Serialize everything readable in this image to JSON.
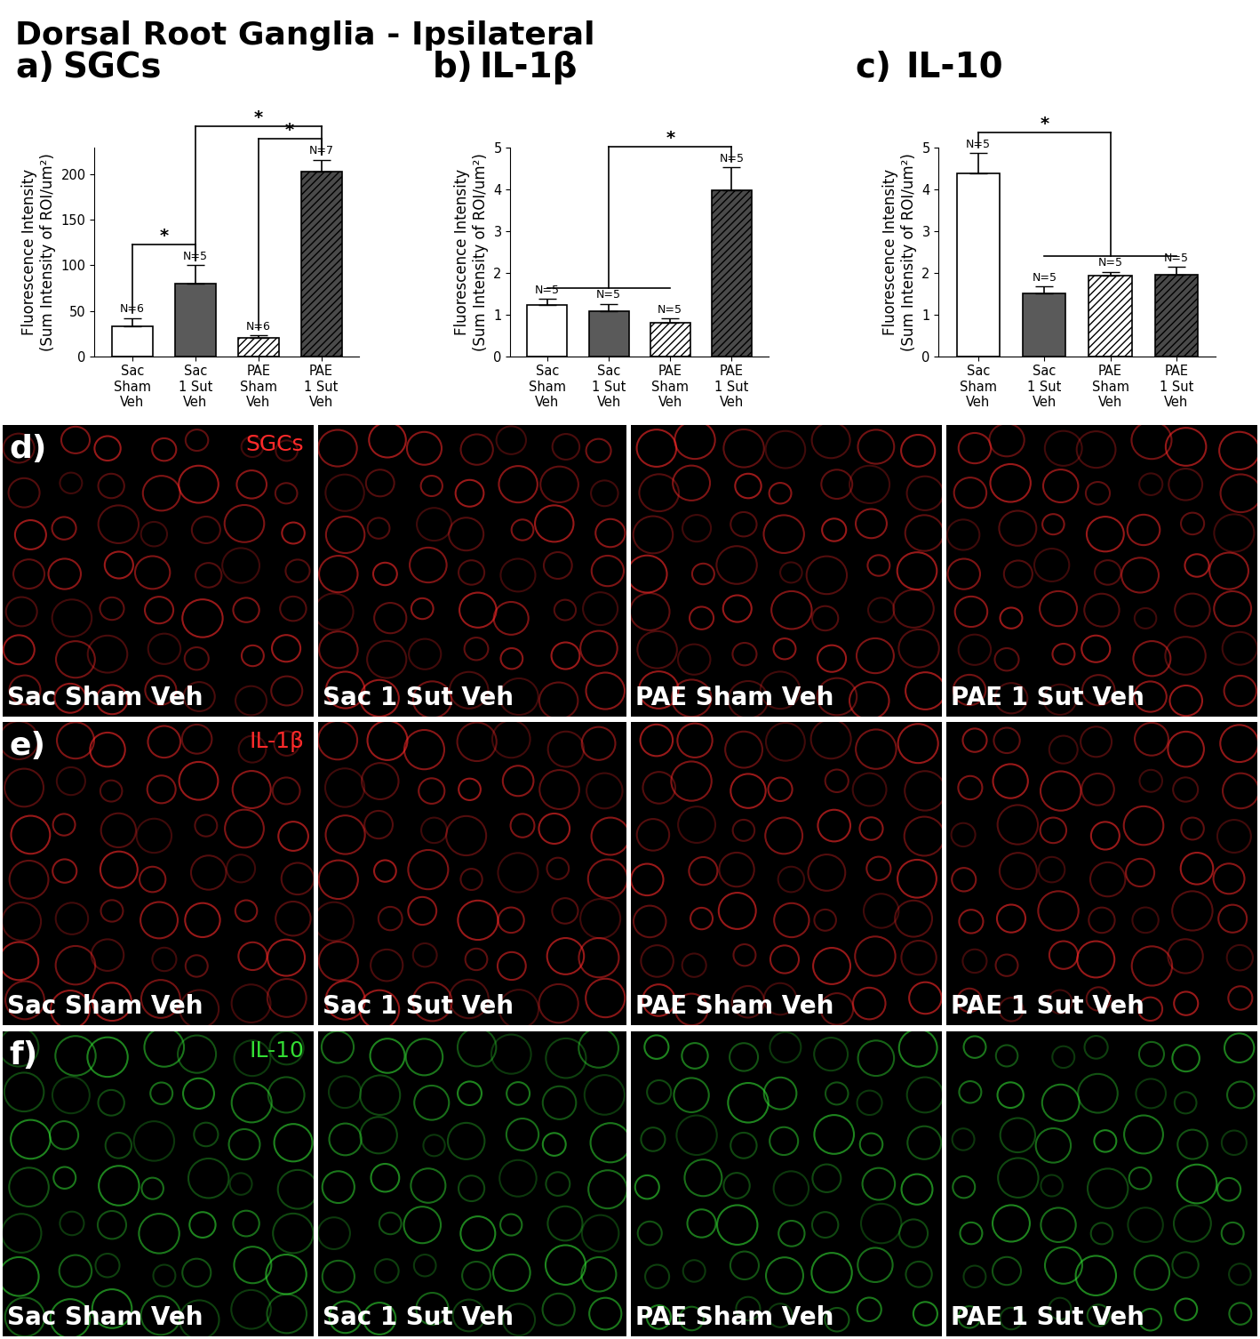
{
  "figure_title": "Dorsal Root Ganglia - Ipsilateral",
  "chart_data": [
    {
      "type": "bar",
      "panel": "a)",
      "title": "SGCs",
      "ylabel": "Fluorescence Intensity\n(Sum Intensity of ROI/um²)",
      "categories": [
        "Sac\nSham\nVeh",
        "Sac\n1 Sut\nVeh",
        "PAE\nSham\nVeh",
        "PAE\n1 Sut\nVeh"
      ],
      "values": [
        33,
        80,
        20,
        203
      ],
      "errors": [
        9,
        20,
        3,
        13
      ],
      "n_labels": [
        "N=6",
        "N=5",
        "N=6",
        "N=7"
      ],
      "colors": [
        "#ffffff",
        "#5a5a5a",
        "#ffffff",
        "#4a4a4a"
      ],
      "ylim": [
        0,
        230
      ],
      "yticks": [
        0,
        50,
        100,
        150,
        200
      ],
      "significance": [
        {
          "groups": [
            [
              0
            ],
            [
              1
            ]
          ],
          "label": "*"
        },
        {
          "groups": [
            [
              2
            ],
            [
              3
            ]
          ],
          "label": "*"
        },
        {
          "groups": [
            [
              1
            ],
            [
              3
            ]
          ],
          "label": "*"
        }
      ]
    },
    {
      "type": "bar",
      "panel": "b)",
      "title": "IL-1β",
      "ylabel": "Fluorescence Intensity\n(Sum Intensity of ROI/um²)",
      "categories": [
        "Sac\nSham\nVeh",
        "Sac\n1 Sut\nVeh",
        "PAE\nSham\nVeh",
        "PAE\n1 Sut\nVeh"
      ],
      "values": [
        1.22,
        1.07,
        0.8,
        3.97
      ],
      "errors": [
        0.15,
        0.18,
        0.1,
        0.55
      ],
      "n_labels": [
        "N=5",
        "N=5",
        "N=5",
        "N=5"
      ],
      "colors": [
        "#ffffff",
        "#5a5a5a",
        "#ffffff",
        "#4a4a4a"
      ],
      "ylim": [
        0,
        5
      ],
      "yticks": [
        0,
        1,
        2,
        3,
        4,
        5
      ],
      "significance": [
        {
          "groups": [
            [
              0,
              1,
              2
            ],
            [
              3
            ]
          ],
          "label": "*"
        }
      ]
    },
    {
      "type": "bar",
      "panel": "c)",
      "title": "IL-10",
      "ylabel": "Fluorescence Intensity\n(Sum Intensity of ROI/um²)",
      "categories": [
        "Sac\nSham\nVeh",
        "Sac\n1 Sut\nVeh",
        "PAE\nSham\nVeh",
        "PAE\n1 Sut\nVeh"
      ],
      "values": [
        4.38,
        1.5,
        1.92,
        1.96
      ],
      "errors": [
        0.48,
        0.17,
        0.1,
        0.18
      ],
      "n_labels": [
        "N=5",
        "N=5",
        "N=5",
        "N=5"
      ],
      "colors": [
        "#ffffff",
        "#5a5a5a",
        "#ffffff",
        "#4a4a4a"
      ],
      "ylim": [
        0,
        5
      ],
      "yticks": [
        0,
        1,
        2,
        3,
        4,
        5
      ],
      "significance": [
        {
          "groups": [
            [
              0
            ],
            [
              1,
              2,
              3
            ]
          ],
          "label": "*"
        }
      ]
    }
  ],
  "image_rows": [
    {
      "panel": "d)",
      "stain": "SGCs",
      "color": "#ff2a2a",
      "labels": [
        "Sac Sham Veh",
        "Sac 1 Sut Veh",
        "PAE Sham Veh",
        "PAE 1 Sut Veh"
      ]
    },
    {
      "panel": "e)",
      "stain": "IL-1β",
      "color": "#ff2a2a",
      "labels": [
        "Sac Sham Veh",
        "Sac 1 Sut Veh",
        "PAE Sham Veh",
        "PAE 1 Sut Veh"
      ]
    },
    {
      "panel": "f)",
      "stain": "IL-10",
      "color": "#33dd33",
      "labels": [
        "Sac Sham Veh",
        "Sac 1 Sut Veh",
        "PAE Sham Veh",
        "PAE 1 Sut Veh"
      ]
    }
  ]
}
